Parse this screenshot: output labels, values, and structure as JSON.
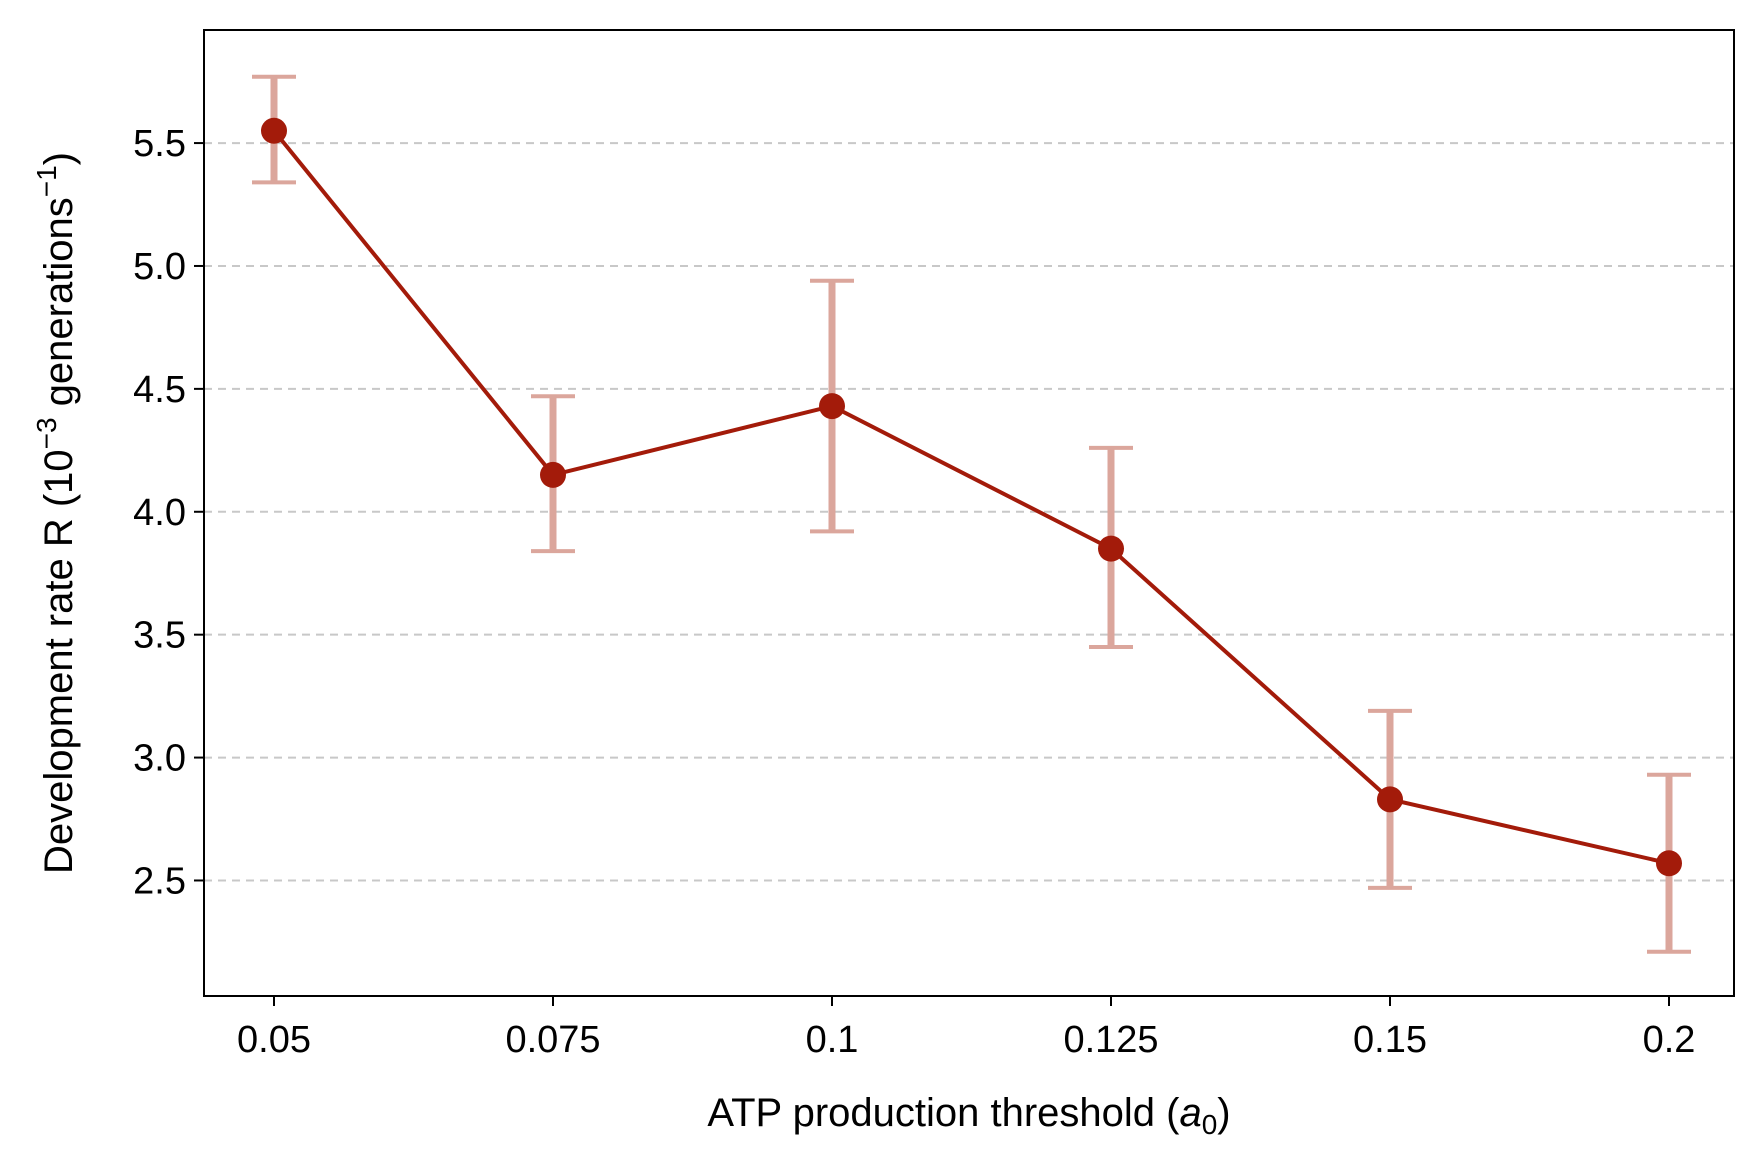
{
  "chart_data": {
    "type": "line",
    "x": [
      "0.05",
      "0.075",
      "0.1",
      "0.125",
      "0.15",
      "0.2"
    ],
    "values": [
      5.55,
      4.15,
      4.43,
      3.85,
      2.83,
      2.57
    ],
    "error_low": [
      5.34,
      3.84,
      3.92,
      3.45,
      2.47,
      2.21
    ],
    "error_high": [
      5.77,
      4.47,
      4.94,
      4.26,
      3.19,
      2.93
    ],
    "y_ticks": [
      2.5,
      3.0,
      3.5,
      4.0,
      4.5,
      5.0,
      5.5
    ],
    "ylim": [
      2.03,
      5.96
    ],
    "xlabel": "ATP production threshold (a0)",
    "xlabel_main": "ATP production threshold (",
    "xlabel_var": "a",
    "xlabel_sub": "0",
    "xlabel_close": ")",
    "ylabel": "Development rate R (10−3 generations−1)",
    "ylabel_main": "Development rate R (10",
    "ylabel_sup1": "−3",
    "ylabel_mid": " generations",
    "ylabel_sup2": "−1",
    "ylabel_close": ")",
    "grid": "horizontal dashed",
    "colors": {
      "line": "#a31b0a",
      "error": "#dba69c",
      "grid": "#c8c8c8"
    }
  }
}
